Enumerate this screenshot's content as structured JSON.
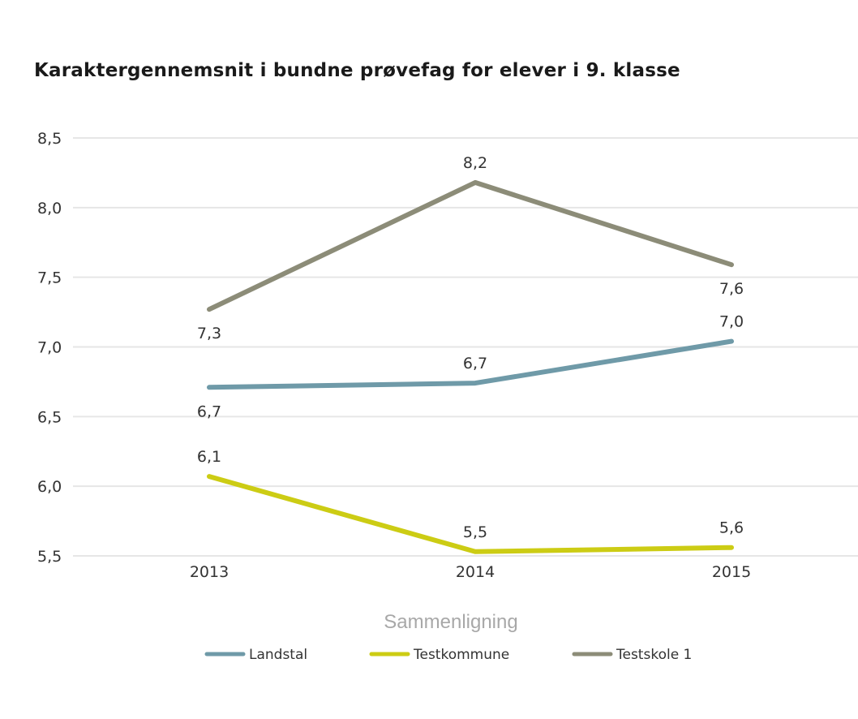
{
  "title": "Karaktergennemsnit i bundne prøvefag for elever i 9. klasse",
  "chart_data": {
    "type": "line",
    "title": "Karaktergennemsnit i bundne prøvefag for elever i 9. klasse",
    "xlabel": "Sammenligning",
    "ylabel": "",
    "categories": [
      "2013",
      "2014",
      "2015"
    ],
    "ylim": [
      5.5,
      8.5
    ],
    "yticks": [
      5.5,
      6.0,
      6.5,
      7.0,
      7.5,
      8.0,
      8.5
    ],
    "ytick_labels": [
      "5,5",
      "6,0",
      "6,5",
      "7,0",
      "7,5",
      "8,0",
      "8,5"
    ],
    "grid": true,
    "legend": "bottom",
    "series": [
      {
        "name": "Landstal",
        "color": "#6f9aa8",
        "values": [
          6.71,
          6.74,
          7.04
        ],
        "labels": [
          "6,7",
          "6,7",
          "7,0"
        ],
        "label_pos": [
          "below",
          "above",
          "above"
        ]
      },
      {
        "name": "Testkommune",
        "color": "#cccc14",
        "values": [
          6.07,
          5.53,
          5.56
        ],
        "labels": [
          "6,1",
          "5,5",
          "5,6"
        ],
        "label_pos": [
          "above",
          "above",
          "above"
        ]
      },
      {
        "name": "Testskole 1",
        "color": "#8c8c78",
        "values": [
          7.27,
          8.18,
          7.59
        ],
        "labels": [
          "7,3",
          "8,2",
          "7,6"
        ],
        "label_pos": [
          "below",
          "above",
          "below"
        ]
      }
    ]
  }
}
